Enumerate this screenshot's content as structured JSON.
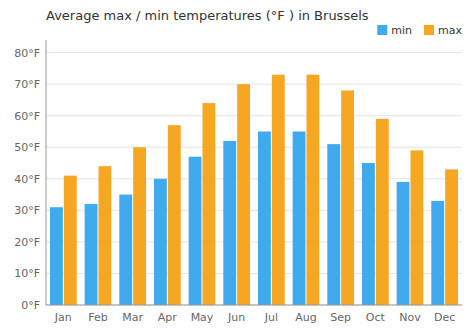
{
  "chart_data": {
    "type": "bar",
    "title": "Average max / min temperatures (°F ) in Brussels",
    "categories": [
      "Jan",
      "Feb",
      "Mar",
      "Apr",
      "May",
      "Jun",
      "Jul",
      "Aug",
      "Sep",
      "Oct",
      "Nov",
      "Dec"
    ],
    "series": [
      {
        "name": "min",
        "color": "#3faaee",
        "values": [
          31,
          32,
          35,
          40,
          47,
          52,
          55,
          55,
          51,
          45,
          39,
          33
        ]
      },
      {
        "name": "max",
        "color": "#f5a623",
        "values": [
          41,
          44,
          50,
          57,
          64,
          70,
          73,
          73,
          68,
          59,
          49,
          43
        ]
      }
    ],
    "ylim": [
      0,
      84
    ],
    "yticks": [
      {
        "value": 0,
        "label": "0°F"
      },
      {
        "value": 10,
        "label": "10°F"
      },
      {
        "value": 20,
        "label": "20°F"
      },
      {
        "value": 30,
        "label": "30°F"
      },
      {
        "value": 40,
        "label": "40°F"
      },
      {
        "value": 50,
        "label": "50°F"
      },
      {
        "value": 60,
        "label": "60°F"
      },
      {
        "value": 70,
        "label": "70°F"
      },
      {
        "value": 80,
        "label": "80°F"
      }
    ],
    "grid": true,
    "legend": "upper right"
  }
}
